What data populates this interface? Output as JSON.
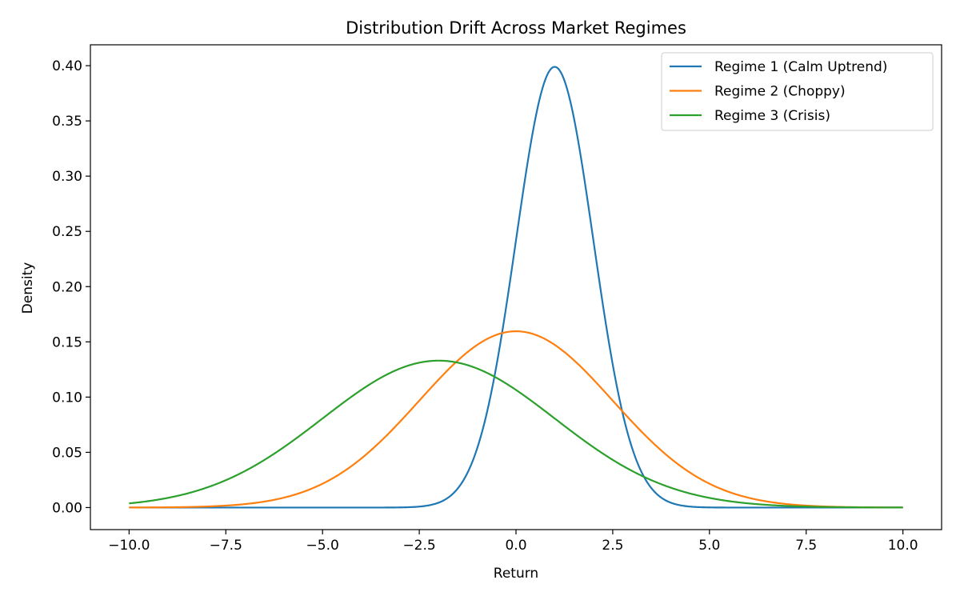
{
  "chart_data": {
    "type": "line",
    "title": "Distribution Drift Across Market Regimes",
    "xlabel": "Return",
    "ylabel": "Density",
    "xlim": [
      -11,
      11
    ],
    "ylim": [
      -0.01995,
      0.41889
    ],
    "x_range": [
      -10,
      10
    ],
    "grid": false,
    "legend_placement": "top-right",
    "xticks": [
      -10,
      -7.5,
      -5,
      -2.5,
      0,
      2.5,
      5,
      7.5,
      10
    ],
    "xtick_labels": [
      "−10.0",
      "−7.5",
      "−5.0",
      "−2.5",
      "0.0",
      "2.5",
      "5.0",
      "7.5",
      "10.0"
    ],
    "yticks": [
      0,
      0.05,
      0.1,
      0.15,
      0.2,
      0.25,
      0.3,
      0.35,
      0.4
    ],
    "ytick_labels": [
      "0.00",
      "0.05",
      "0.10",
      "0.15",
      "0.20",
      "0.25",
      "0.30",
      "0.35",
      "0.40"
    ],
    "series": [
      {
        "name": "Regime 1 (Calm Uptrend)",
        "color": "#1f77b4",
        "distribution": "normal",
        "mean": 1,
        "std": 1,
        "peak": 0.399
      },
      {
        "name": "Regime 2 (Choppy)",
        "color": "#ff7f0e",
        "distribution": "normal",
        "mean": 0,
        "std": 2.5,
        "peak": 0.16
      },
      {
        "name": "Regime 3 (Crisis)",
        "color": "#2ca02c",
        "distribution": "normal",
        "mean": -2,
        "std": 3,
        "peak": 0.133
      }
    ]
  }
}
